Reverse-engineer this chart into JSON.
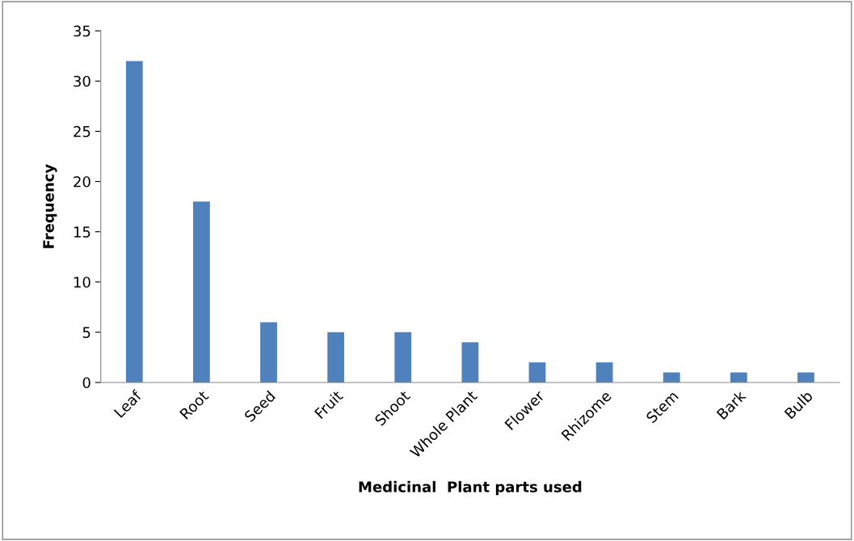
{
  "chart_data": {
    "type": "bar",
    "categories": [
      "Leaf",
      "Root",
      "Seed",
      "Fruit",
      "Shoot",
      "Whole Plant",
      "Flower",
      "Rhizome",
      "Stem",
      "Bark",
      "Bulb"
    ],
    "values": [
      32,
      18,
      6,
      5,
      5,
      4,
      2,
      2,
      1,
      1,
      1
    ],
    "color": "#4f81bd",
    "xlabel": "Medicinal  Plant parts used",
    "ylabel": "Frequency",
    "ylim": [
      0,
      35
    ],
    "yticks": [
      0,
      5,
      10,
      15,
      20,
      25,
      30,
      35
    ],
    "grid": false
  }
}
